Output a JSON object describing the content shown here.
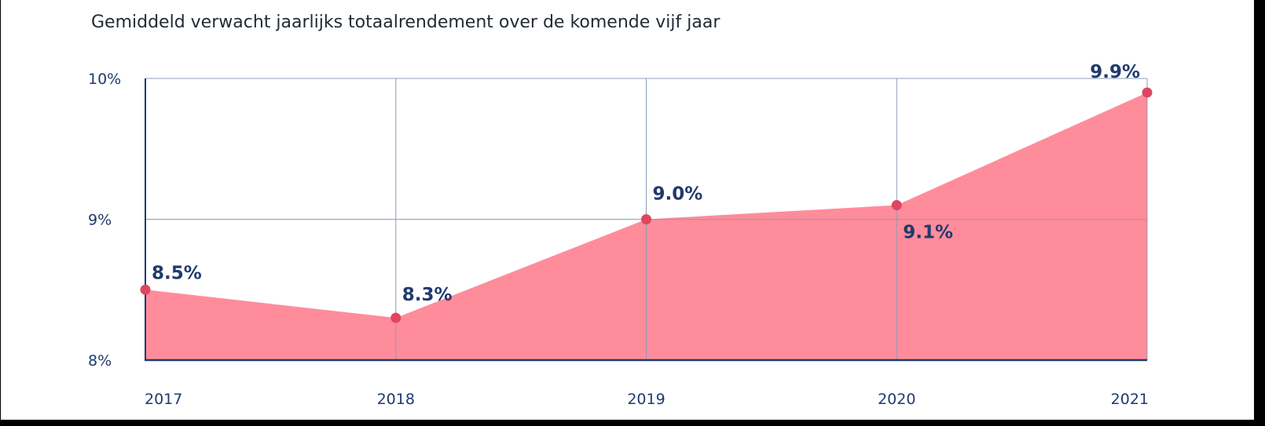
{
  "chart_data": {
    "type": "area",
    "title": "Gemiddeld verwacht jaarlijks totaalrendement over de komende vijf jaar",
    "categories": [
      "2017",
      "2018",
      "2019",
      "2020",
      "2021"
    ],
    "values": [
      8.5,
      8.3,
      9.0,
      9.1,
      9.9
    ],
    "value_labels": [
      "8.5%",
      "8.3%",
      "9.0%",
      "9.1%",
      "9.9%"
    ],
    "y_ticks": [
      8,
      9,
      10
    ],
    "y_tick_labels": [
      "8%",
      "9%",
      "10%"
    ],
    "ylim": [
      8,
      10
    ],
    "xlabel": "",
    "ylabel": "",
    "grid": true,
    "legend": "none",
    "colors": {
      "fill": "#ff8c9b",
      "marker": "#e0455f",
      "grid": "#8d9cb8",
      "axis": "#1f3a6e",
      "text": "#1f3a6e"
    }
  }
}
